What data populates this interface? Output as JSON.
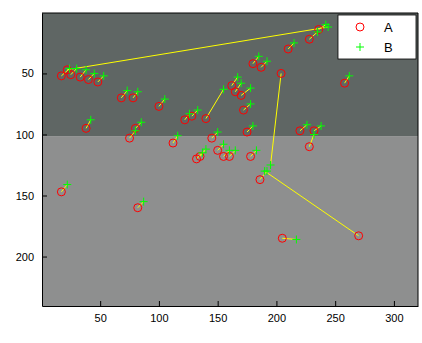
{
  "chart_data": {
    "type": "scatter",
    "xlim": [
      0.5,
      320.5
    ],
    "xticks": [
      50,
      100,
      150,
      200,
      250,
      300
    ],
    "ylim": [
      0.5,
      240.5
    ],
    "yticks": [
      50,
      100,
      150,
      200
    ],
    "legend": "northeast",
    "series": [
      {
        "name": "A",
        "color": "#ff0000",
        "marker": "circle",
        "x": [
          17,
          25,
          33,
          40,
          48,
          22,
          38,
          17,
          68,
          78,
          75,
          80,
          82,
          100,
          112,
          122,
          128,
          132,
          135,
          140,
          145,
          150,
          155,
          160,
          162,
          165,
          170,
          172,
          175,
          178,
          180,
          187,
          186,
          270,
          205,
          204,
          210,
          220,
          228,
          232,
          228,
          236,
          258
        ],
        "values": [
          52,
          51,
          53,
          55,
          57,
          47,
          95,
          147,
          70,
          70,
          103,
          95,
          160,
          77,
          107,
          88,
          85,
          120,
          118,
          87,
          103,
          113,
          118,
          118,
          60,
          65,
          68,
          80,
          98,
          118,
          42,
          45,
          137,
          183,
          185,
          50,
          30,
          97,
          110,
          97,
          22,
          14,
          58
        ]
      },
      {
        "name": "B",
        "color": "#00ff00",
        "marker": "plus",
        "x": [
          24,
          30,
          38,
          45,
          53,
          244,
          42,
          22,
          73,
          82,
          80,
          85,
          87,
          105,
          116,
          126,
          133,
          137,
          140,
          155,
          150,
          155,
          160,
          165,
          167,
          170,
          178,
          178,
          180,
          183,
          185,
          192,
          192,
          190,
          217,
          195,
          215,
          226,
          232,
          238,
          235,
          242,
          262
        ],
        "values": [
          46,
          46,
          47,
          50,
          52,
          12,
          88,
          141,
          64,
          65,
          97,
          90,
          155,
          71,
          101,
          83,
          80,
          115,
          112,
          63,
          98,
          108,
          113,
          113,
          53,
          58,
          62,
          75,
          93,
          113,
          36,
          40,
          130,
          130,
          186,
          125,
          25,
          92,
          100,
          93,
          16,
          10,
          52
        ]
      }
    ]
  }
}
